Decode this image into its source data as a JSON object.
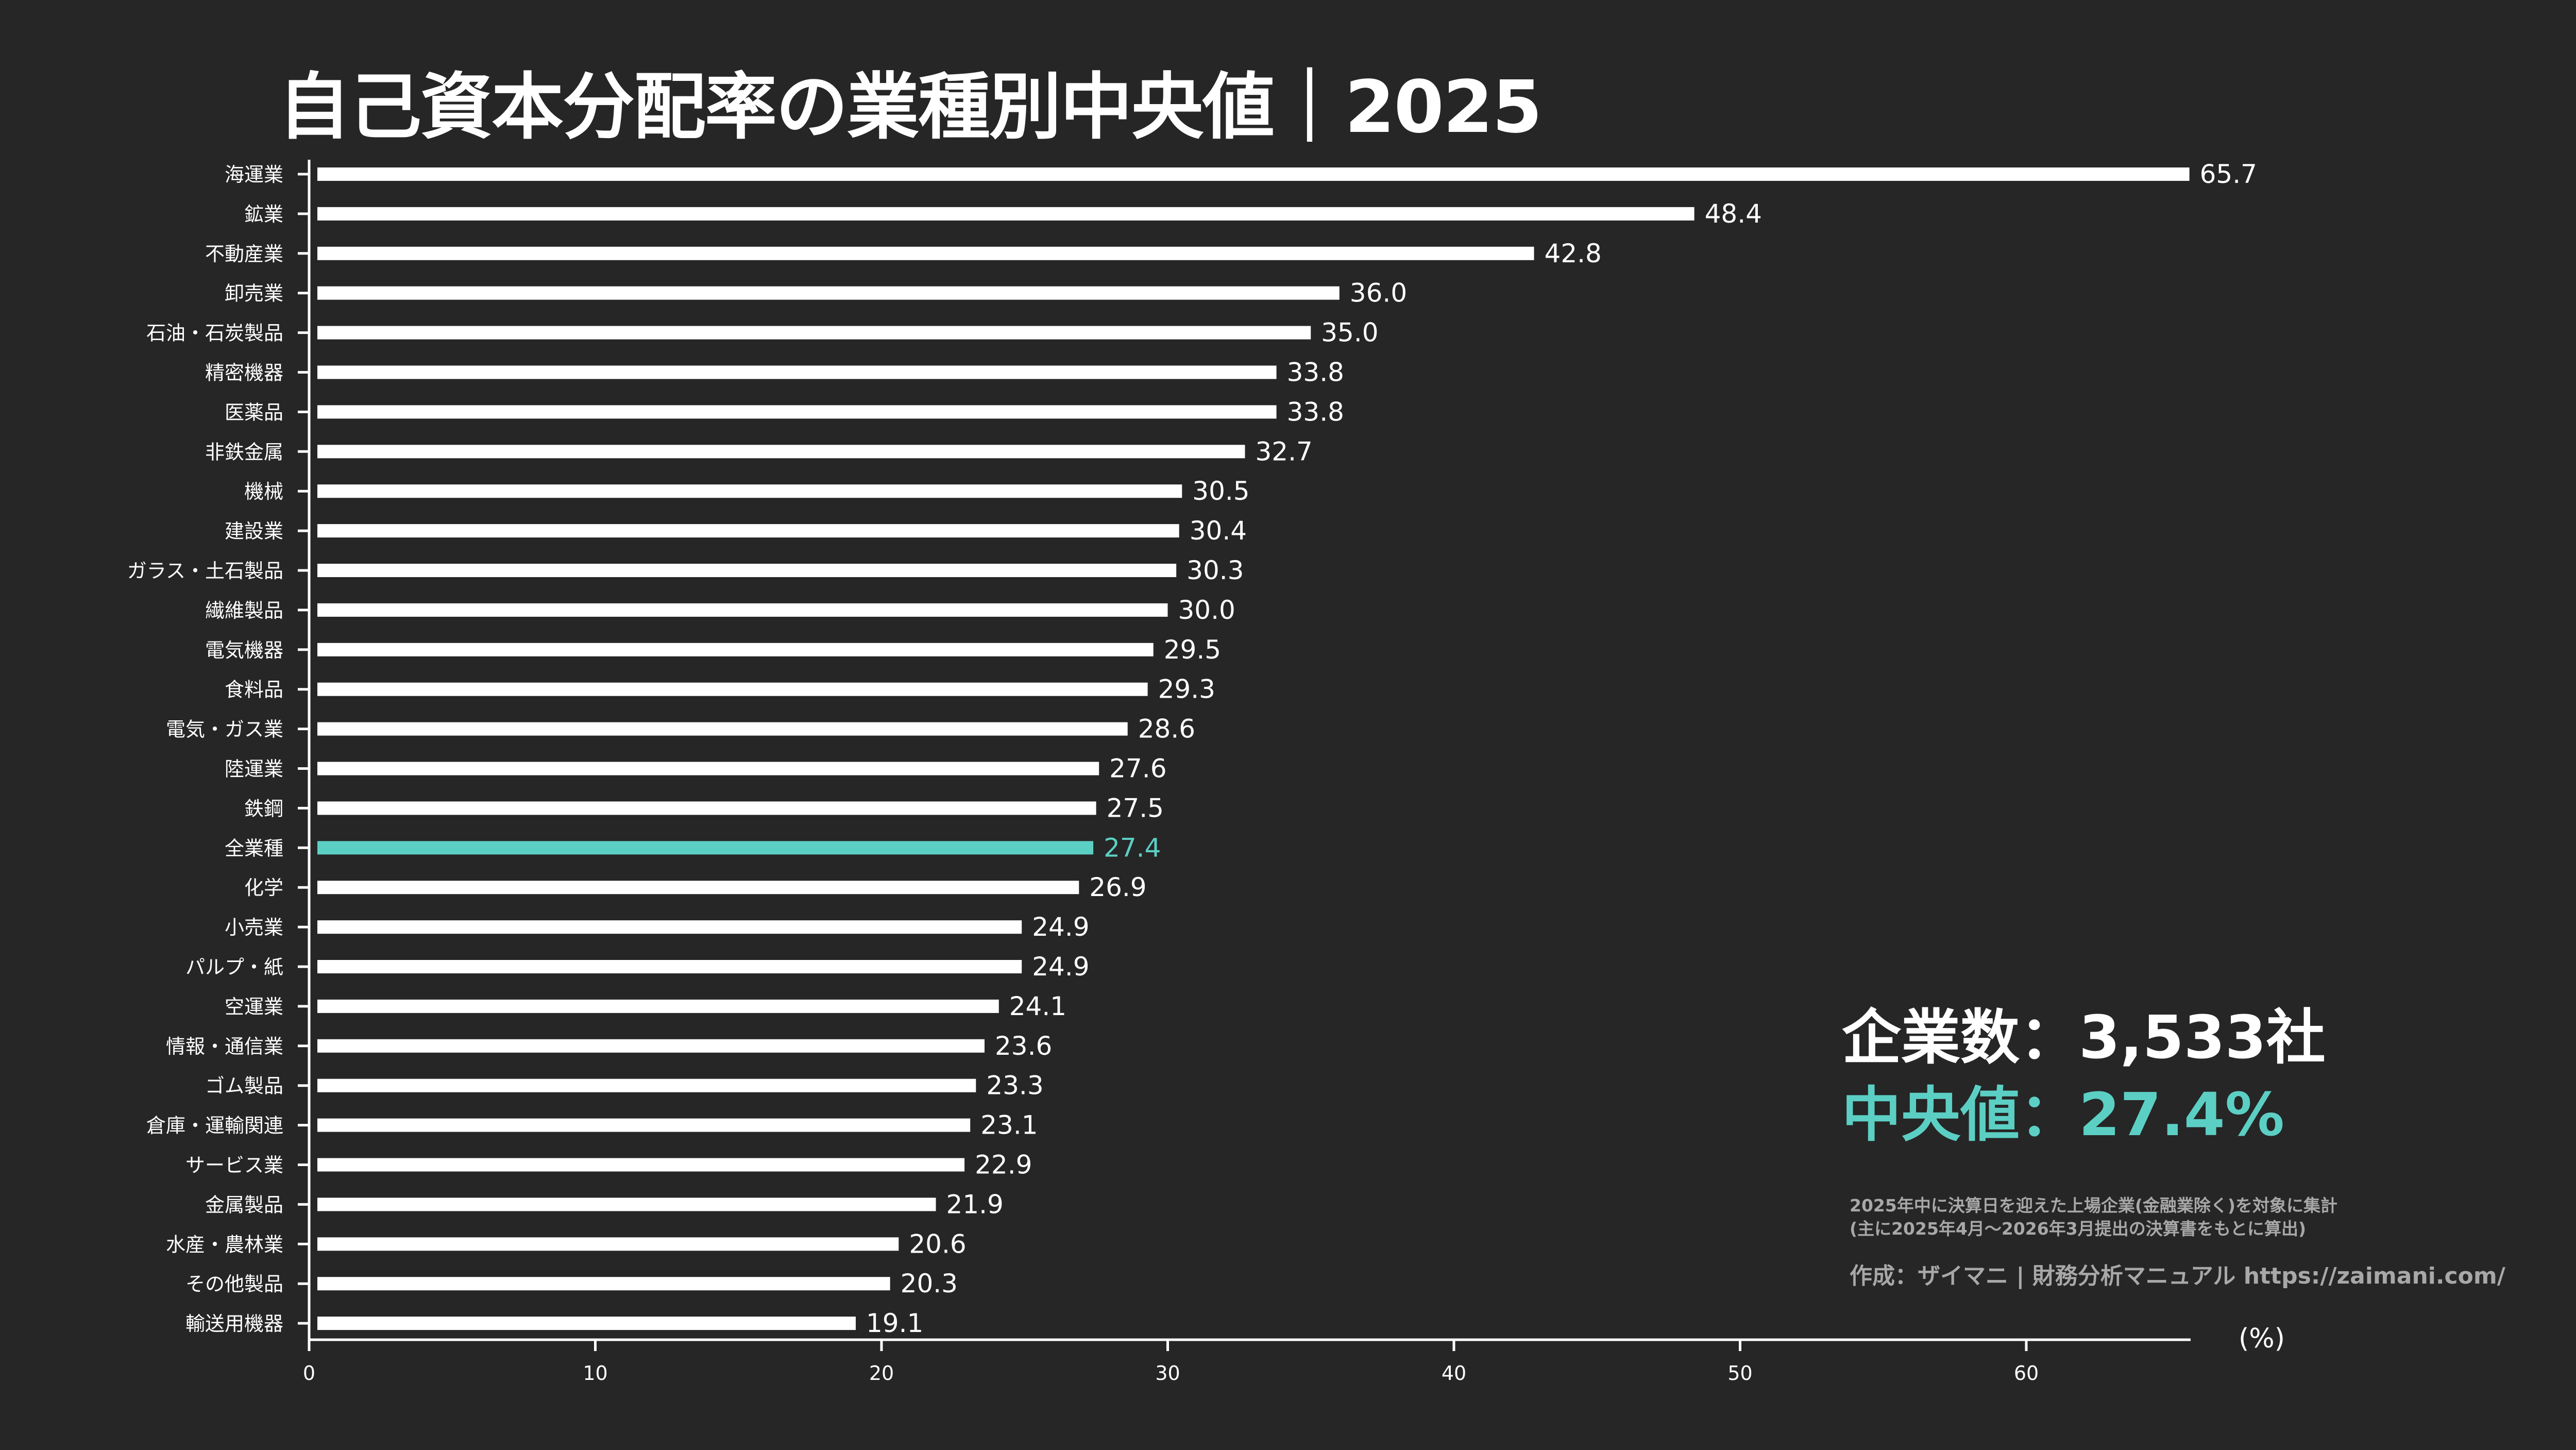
{
  "title": "自己資本分配率の業種別中央値｜2025",
  "stats": {
    "companies": "企業数：3,533社",
    "median": "中央値：27.4%"
  },
  "note": [
    "2025年中に決算日を迎えた上場企業(金融業除く)を対象に集計",
    "(主に2025年4月〜2026年3月提出の決算書をもとに算出)"
  ],
  "credit": "作成：ザイマニ | 財務分析マニュアル https://zaimani.com/",
  "colors": {
    "background": "#262626",
    "bar": "#ffffff",
    "highlight": "#5ccfc4",
    "text": "#ffffff",
    "note": "#a8a8a8"
  },
  "chart_data": {
    "type": "bar",
    "orientation": "horizontal",
    "title": "自己資本分配率の業種別中央値｜2025",
    "xlabel": "(%)",
    "xlim": [
      0,
      65.7
    ],
    "xticks": [
      "0",
      "10",
      "20",
      "30",
      "40",
      "50",
      "60"
    ],
    "grid": false,
    "highlight_category": "全業種",
    "categories": [
      "海運業",
      "鉱業",
      "不動産業",
      "卸売業",
      "石油・石炭製品",
      "精密機器",
      "医薬品",
      "非鉄金属",
      "機械",
      "建設業",
      "ガラス・土石製品",
      "繊維製品",
      "電気機器",
      "食料品",
      "電気・ガス業",
      "陸運業",
      "鉄鋼",
      "全業種",
      "化学",
      "小売業",
      "パルプ・紙",
      "空運業",
      "情報・通信業",
      "ゴム製品",
      "倉庫・運輸関連",
      "サービス業",
      "金属製品",
      "水産・農林業",
      "その他製品",
      "輸送用機器"
    ],
    "values": [
      65.7,
      48.4,
      42.8,
      36.0,
      35.0,
      33.8,
      33.8,
      32.7,
      30.5,
      30.4,
      30.3,
      30.0,
      29.5,
      29.3,
      28.6,
      27.6,
      27.5,
      27.4,
      26.9,
      24.9,
      24.9,
      24.1,
      23.6,
      23.3,
      23.1,
      22.9,
      21.9,
      20.6,
      20.3,
      19.1
    ],
    "value_labels": [
      "65.7",
      "48.4",
      "42.8",
      "36.0",
      "35.0",
      "33.8",
      "33.8",
      "32.7",
      "30.5",
      "30.4",
      "30.3",
      "30.0",
      "29.5",
      "29.3",
      "28.6",
      "27.6",
      "27.5",
      "27.4",
      "26.9",
      "24.9",
      "24.9",
      "24.1",
      "23.6",
      "23.3",
      "23.1",
      "22.9",
      "21.9",
      "20.6",
      "20.3",
      "19.1"
    ]
  }
}
